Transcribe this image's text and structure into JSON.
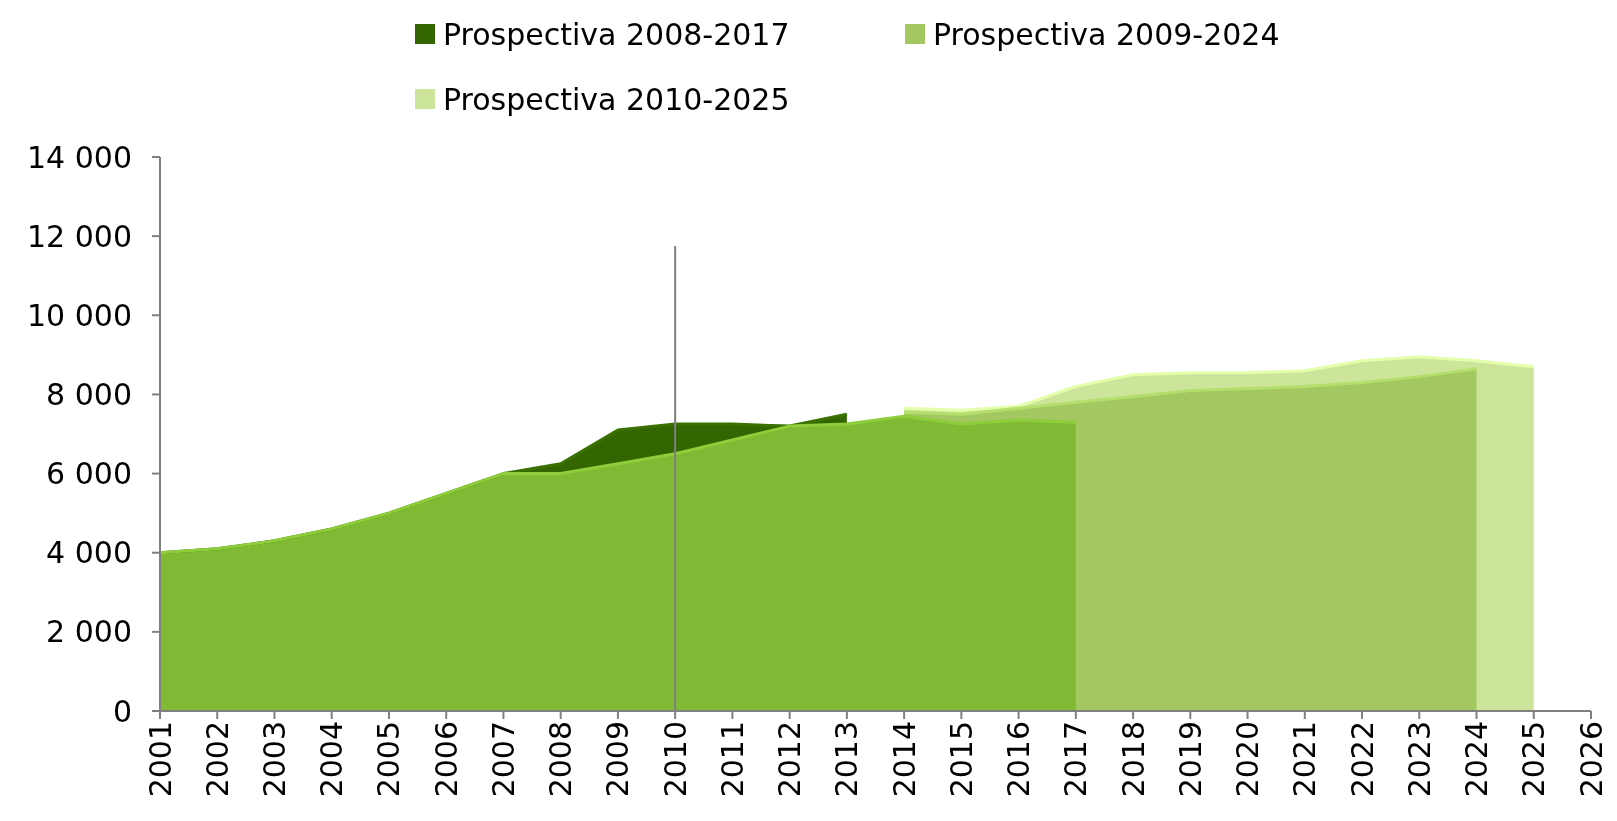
{
  "chart_data": {
    "type": "area",
    "categories": [
      "2001",
      "2002",
      "2003",
      "2004",
      "2005",
      "2006",
      "2007",
      "2008",
      "2009",
      "2010",
      "2011",
      "2012",
      "2013",
      "2014",
      "2015",
      "2016",
      "2017",
      "2018",
      "2019",
      "2020",
      "2021",
      "2022",
      "2023",
      "2024",
      "2025",
      "2026"
    ],
    "series": [
      {
        "name": "Prospectiva 2010-2025",
        "color": "#cde59a",
        "values": [
          null,
          null,
          null,
          null,
          null,
          null,
          null,
          null,
          null,
          null,
          null,
          null,
          null,
          7650,
          7600,
          7700,
          8200,
          8500,
          8550,
          8550,
          8600,
          8850,
          8950,
          8850,
          8700,
          null
        ]
      },
      {
        "name": "Prospectiva 2009-2024",
        "color": "#a3c862",
        "values": [
          null,
          null,
          null,
          null,
          null,
          null,
          null,
          null,
          null,
          null,
          null,
          null,
          null,
          7550,
          7500,
          7650,
          7800,
          7950,
          8100,
          8150,
          8200,
          8300,
          8450,
          8650,
          null,
          null
        ]
      },
      {
        "name": "Prospectiva 2008-2017",
        "color": "#336600",
        "values": [
          4000,
          4100,
          4300,
          4600,
          5000,
          5500,
          6000,
          6250,
          7100,
          7250,
          7250,
          7200,
          7500,
          null,
          null,
          null,
          null,
          null,
          null,
          null,
          null,
          null,
          null,
          null,
          null,
          null
        ]
      },
      {
        "color": "#80b934",
        "values": [
          4000,
          4100,
          4300,
          4600,
          5000,
          5500,
          6000,
          6000,
          6250,
          6500,
          6850,
          7200,
          7250,
          7450,
          7250,
          7350,
          7300,
          null,
          null,
          null,
          null,
          null,
          null,
          null,
          null,
          null
        ]
      }
    ],
    "ylim": [
      0,
      14000
    ],
    "yticks": [
      {
        "value": 0,
        "label": "0"
      },
      {
        "value": 2000,
        "label": "2 000"
      },
      {
        "value": 4000,
        "label": "4 000"
      },
      {
        "value": 6000,
        "label": "6 000"
      },
      {
        "value": 8000,
        "label": "8 000"
      },
      {
        "value": 10000,
        "label": "10 000"
      },
      {
        "value": 12000,
        "label": "12 000"
      },
      {
        "value": 14000,
        "label": "14 000"
      }
    ],
    "ref_lines": [
      {
        "axis": "x",
        "value": "2010",
        "color": "#808080"
      }
    ],
    "grid": false,
    "legend": "top"
  }
}
